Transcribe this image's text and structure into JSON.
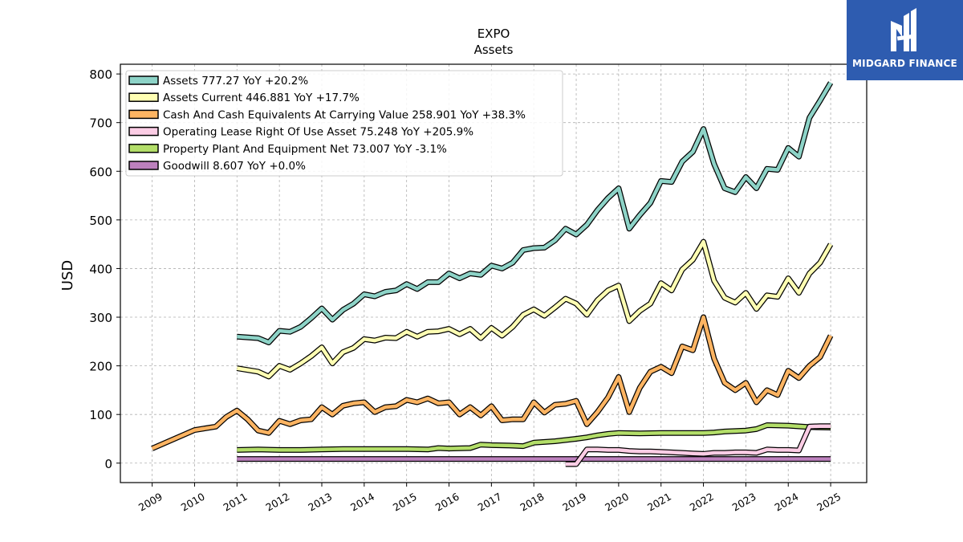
{
  "brand": {
    "name": "MIDGARD FINANCE",
    "bg_color": "#2e5cb0"
  },
  "chart_data": {
    "type": "line",
    "title": "EXPO",
    "subtitle": "Assets",
    "ylabel": "USD",
    "xlabel": "",
    "ylim": [
      -40,
      820
    ],
    "xlim": [
      2008.25,
      2025.85
    ],
    "yticks": [
      0,
      100,
      200,
      300,
      400,
      500,
      600,
      700,
      800
    ],
    "xticks": [
      2009,
      2010,
      2011,
      2012,
      2013,
      2014,
      2015,
      2016,
      2017,
      2018,
      2019,
      2020,
      2021,
      2022,
      2023,
      2024,
      2025
    ],
    "grid": true,
    "legend_position": "top-left",
    "series": [
      {
        "name": "Assets",
        "legend": "Assets  777.27 YoY +20.2%",
        "color": "#8dd3c7",
        "points": [
          [
            2011.0,
            260
          ],
          [
            2011.5,
            257
          ],
          [
            2011.75,
            248
          ],
          [
            2012.0,
            272
          ],
          [
            2012.25,
            270
          ],
          [
            2012.5,
            280
          ],
          [
            2012.75,
            298
          ],
          [
            2013.0,
            318
          ],
          [
            2013.25,
            295
          ],
          [
            2013.5,
            315
          ],
          [
            2013.75,
            328
          ],
          [
            2014.0,
            347
          ],
          [
            2014.25,
            343
          ],
          [
            2014.5,
            352
          ],
          [
            2014.75,
            355
          ],
          [
            2015.0,
            368
          ],
          [
            2015.25,
            358
          ],
          [
            2015.5,
            372
          ],
          [
            2015.75,
            372
          ],
          [
            2016.0,
            390
          ],
          [
            2016.25,
            380
          ],
          [
            2016.5,
            390
          ],
          [
            2016.75,
            387
          ],
          [
            2017.0,
            406
          ],
          [
            2017.25,
            400
          ],
          [
            2017.5,
            412
          ],
          [
            2017.75,
            438
          ],
          [
            2018.0,
            442
          ],
          [
            2018.25,
            443
          ],
          [
            2018.5,
            458
          ],
          [
            2018.75,
            482
          ],
          [
            2019.0,
            470
          ],
          [
            2019.25,
            490
          ],
          [
            2019.5,
            520
          ],
          [
            2019.75,
            545
          ],
          [
            2020.0,
            565
          ],
          [
            2020.25,
            482
          ],
          [
            2020.5,
            510
          ],
          [
            2020.75,
            535
          ],
          [
            2021.0,
            580
          ],
          [
            2021.25,
            578
          ],
          [
            2021.5,
            620
          ],
          [
            2021.75,
            640
          ],
          [
            2022.0,
            687
          ],
          [
            2022.25,
            615
          ],
          [
            2022.5,
            565
          ],
          [
            2022.75,
            557
          ],
          [
            2023.0,
            588
          ],
          [
            2023.25,
            565
          ],
          [
            2023.5,
            605
          ],
          [
            2023.75,
            603
          ],
          [
            2024.0,
            648
          ],
          [
            2024.25,
            630
          ],
          [
            2024.5,
            710
          ],
          [
            2024.75,
            745
          ],
          [
            2025.0,
            782
          ]
        ]
      },
      {
        "name": "Assets Current",
        "legend": "Assets Current  446.881 YoY +17.7%",
        "color": "#ffffb3",
        "points": [
          [
            2011.0,
            195
          ],
          [
            2011.5,
            188
          ],
          [
            2011.75,
            178
          ],
          [
            2012.0,
            200
          ],
          [
            2012.25,
            192
          ],
          [
            2012.5,
            205
          ],
          [
            2012.75,
            220
          ],
          [
            2013.0,
            238
          ],
          [
            2013.25,
            205
          ],
          [
            2013.5,
            228
          ],
          [
            2013.75,
            237
          ],
          [
            2014.0,
            255
          ],
          [
            2014.25,
            252
          ],
          [
            2014.5,
            258
          ],
          [
            2014.75,
            257
          ],
          [
            2015.0,
            270
          ],
          [
            2015.25,
            260
          ],
          [
            2015.5,
            270
          ],
          [
            2015.75,
            271
          ],
          [
            2016.0,
            276
          ],
          [
            2016.25,
            265
          ],
          [
            2016.5,
            276
          ],
          [
            2016.75,
            257
          ],
          [
            2017.0,
            278
          ],
          [
            2017.25,
            262
          ],
          [
            2017.5,
            280
          ],
          [
            2017.75,
            305
          ],
          [
            2018.0,
            316
          ],
          [
            2018.25,
            303
          ],
          [
            2018.5,
            320
          ],
          [
            2018.75,
            338
          ],
          [
            2019.0,
            328
          ],
          [
            2019.25,
            305
          ],
          [
            2019.5,
            335
          ],
          [
            2019.75,
            355
          ],
          [
            2020.0,
            365
          ],
          [
            2020.25,
            292
          ],
          [
            2020.5,
            313
          ],
          [
            2020.75,
            328
          ],
          [
            2021.0,
            370
          ],
          [
            2021.25,
            355
          ],
          [
            2021.5,
            398
          ],
          [
            2021.75,
            418
          ],
          [
            2022.0,
            455
          ],
          [
            2022.25,
            375
          ],
          [
            2022.5,
            340
          ],
          [
            2022.75,
            330
          ],
          [
            2023.0,
            350
          ],
          [
            2023.25,
            317
          ],
          [
            2023.5,
            345
          ],
          [
            2023.75,
            342
          ],
          [
            2024.0,
            380
          ],
          [
            2024.25,
            350
          ],
          [
            2024.5,
            390
          ],
          [
            2024.75,
            412
          ],
          [
            2025.0,
            450
          ]
        ]
      },
      {
        "name": "Cash And Cash Equivalents At Carrying Value",
        "legend": "Cash And Cash Equivalents At Carrying Value  258.901 YoY +38.3%",
        "color": "#fdb462",
        "points": [
          [
            2009.0,
            30
          ],
          [
            2010.0,
            68
          ],
          [
            2010.5,
            75
          ],
          [
            2010.75,
            95
          ],
          [
            2011.0,
            108
          ],
          [
            2011.25,
            90
          ],
          [
            2011.5,
            67
          ],
          [
            2011.75,
            62
          ],
          [
            2012.0,
            87
          ],
          [
            2012.25,
            80
          ],
          [
            2012.5,
            88
          ],
          [
            2012.75,
            90
          ],
          [
            2013.0,
            115
          ],
          [
            2013.25,
            100
          ],
          [
            2013.5,
            118
          ],
          [
            2013.75,
            123
          ],
          [
            2014.0,
            125
          ],
          [
            2014.25,
            105
          ],
          [
            2014.5,
            115
          ],
          [
            2014.75,
            117
          ],
          [
            2015.0,
            130
          ],
          [
            2015.25,
            125
          ],
          [
            2015.5,
            133
          ],
          [
            2015.75,
            123
          ],
          [
            2016.0,
            125
          ],
          [
            2016.25,
            100
          ],
          [
            2016.5,
            115
          ],
          [
            2016.75,
            98
          ],
          [
            2017.0,
            117
          ],
          [
            2017.25,
            88
          ],
          [
            2017.5,
            90
          ],
          [
            2017.75,
            90
          ],
          [
            2018.0,
            125
          ],
          [
            2018.25,
            104
          ],
          [
            2018.5,
            120
          ],
          [
            2018.75,
            122
          ],
          [
            2019.0,
            128
          ],
          [
            2019.25,
            80
          ],
          [
            2019.5,
            105
          ],
          [
            2019.75,
            135
          ],
          [
            2020.0,
            177
          ],
          [
            2020.25,
            105
          ],
          [
            2020.5,
            155
          ],
          [
            2020.75,
            188
          ],
          [
            2021.0,
            198
          ],
          [
            2021.25,
            185
          ],
          [
            2021.5,
            240
          ],
          [
            2021.75,
            232
          ],
          [
            2022.0,
            300
          ],
          [
            2022.25,
            215
          ],
          [
            2022.5,
            165
          ],
          [
            2022.75,
            150
          ],
          [
            2023.0,
            165
          ],
          [
            2023.25,
            125
          ],
          [
            2023.5,
            150
          ],
          [
            2023.75,
            140
          ],
          [
            2024.0,
            190
          ],
          [
            2024.25,
            175
          ],
          [
            2024.5,
            200
          ],
          [
            2024.75,
            218
          ],
          [
            2025.0,
            262
          ]
        ]
      },
      {
        "name": "Operating Lease Right Of Use Asset",
        "legend": "Operating Lease Right Of Use Asset  75.248 YoY +205.9%",
        "color": "#fccde5",
        "points": [
          [
            2018.75,
            -2
          ],
          [
            2019.0,
            -2
          ],
          [
            2019.25,
            28
          ],
          [
            2019.5,
            28
          ],
          [
            2019.75,
            27
          ],
          [
            2020.0,
            27
          ],
          [
            2020.25,
            25
          ],
          [
            2020.5,
            24
          ],
          [
            2020.75,
            24
          ],
          [
            2021.0,
            23
          ],
          [
            2021.25,
            22
          ],
          [
            2021.5,
            21
          ],
          [
            2021.75,
            20
          ],
          [
            2022.0,
            19
          ],
          [
            2022.25,
            21
          ],
          [
            2022.5,
            21
          ],
          [
            2022.75,
            22
          ],
          [
            2023.0,
            22
          ],
          [
            2023.25,
            21
          ],
          [
            2023.5,
            28
          ],
          [
            2023.75,
            27
          ],
          [
            2024.0,
            27
          ],
          [
            2024.25,
            26
          ],
          [
            2024.5,
            75
          ],
          [
            2024.75,
            76
          ],
          [
            2025.0,
            76
          ]
        ]
      },
      {
        "name": "Property Plant And Equipment Net",
        "legend": "Property Plant And Equipment Net  73.007 YoY -3.1%",
        "color": "#b3de69",
        "points": [
          [
            2011.0,
            27
          ],
          [
            2011.5,
            28
          ],
          [
            2012.0,
            27
          ],
          [
            2012.5,
            27
          ],
          [
            2013.0,
            28
          ],
          [
            2013.5,
            29
          ],
          [
            2014.0,
            29
          ],
          [
            2014.5,
            29
          ],
          [
            2015.0,
            29
          ],
          [
            2015.5,
            28
          ],
          [
            2015.75,
            31
          ],
          [
            2016.0,
            30
          ],
          [
            2016.5,
            31
          ],
          [
            2016.75,
            38
          ],
          [
            2017.0,
            37
          ],
          [
            2017.5,
            36
          ],
          [
            2017.75,
            35
          ],
          [
            2018.0,
            42
          ],
          [
            2018.5,
            45
          ],
          [
            2019.0,
            50
          ],
          [
            2019.25,
            53
          ],
          [
            2019.5,
            57
          ],
          [
            2019.75,
            60
          ],
          [
            2020.0,
            62
          ],
          [
            2020.5,
            61
          ],
          [
            2021.0,
            62
          ],
          [
            2021.5,
            62
          ],
          [
            2022.0,
            62
          ],
          [
            2022.25,
            63
          ],
          [
            2022.5,
            65
          ],
          [
            2023.0,
            67
          ],
          [
            2023.25,
            70
          ],
          [
            2023.5,
            78
          ],
          [
            2024.0,
            77
          ],
          [
            2024.5,
            74
          ],
          [
            2025.0,
            73
          ]
        ]
      },
      {
        "name": "Goodwill",
        "legend": "Goodwill  8.607 YoY +0.0%",
        "color": "#bc80bd",
        "points": [
          [
            2011.0,
            8.6
          ],
          [
            2025.0,
            8.6
          ]
        ]
      }
    ]
  }
}
